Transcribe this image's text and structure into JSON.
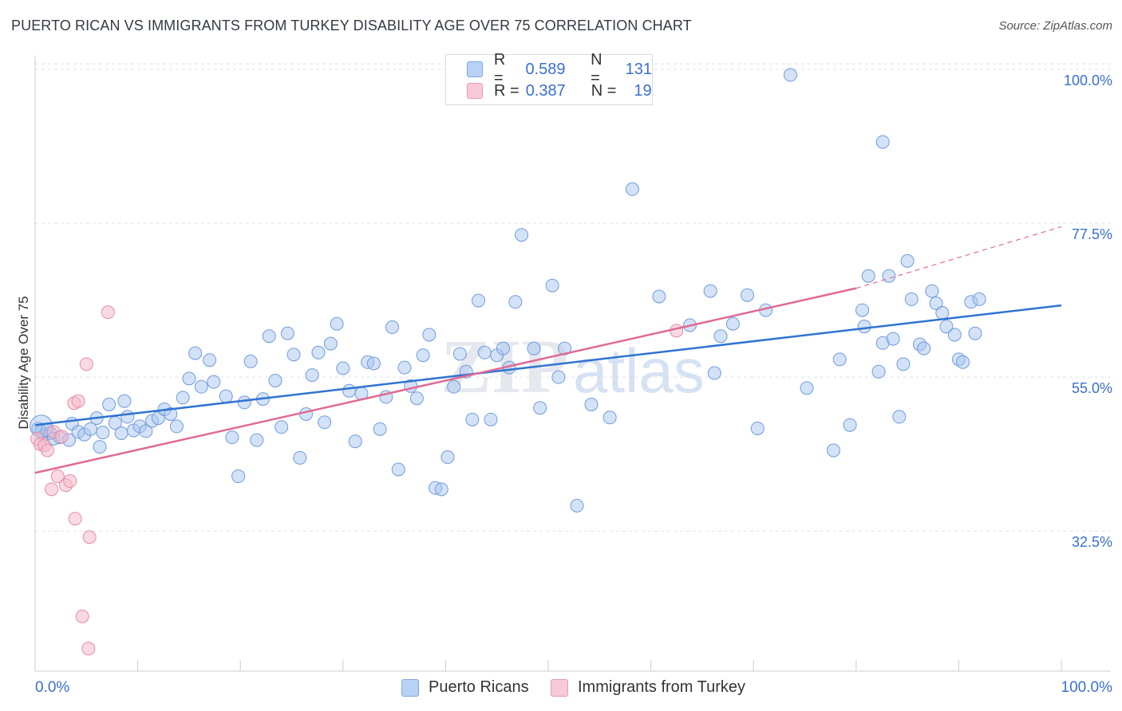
{
  "title": "PUERTO RICAN VS IMMIGRANTS FROM TURKEY DISABILITY AGE OVER 75 CORRELATION CHART",
  "source": "Source: ZipAtlas.com",
  "watermark_zip": "ZIP",
  "watermark_atlas": "atlas",
  "legend": {
    "r_label": "R =",
    "n_label": "N =",
    "series1_r": "0.589",
    "series1_n": "131",
    "series2_r": "0.387",
    "series2_n": "19"
  },
  "colors": {
    "blue_fill": "#a9c6f0",
    "blue_stroke": "#6f9bdc",
    "blue_line": "#2f73d1",
    "pink_fill": "#f5bccb",
    "pink_stroke": "#e58aa6",
    "pink_line": "#e06a93",
    "tick_text": "#3a6fd0"
  },
  "chart_data": {
    "type": "scatter",
    "xlabel_left": "0.0%",
    "xlabel_right": "100.0%",
    "ylabel": "Disability Age Over 75",
    "x_range": [
      0,
      100
    ],
    "y_range": [
      12,
      102
    ],
    "y_ticks": [
      {
        "value": 100.0,
        "label": "100.0%"
      },
      {
        "value": 77.5,
        "label": "77.5%"
      },
      {
        "value": 55.0,
        "label": "55.0%"
      },
      {
        "value": 32.5,
        "label": "32.5%"
      }
    ],
    "series": [
      {
        "name": "Puerto Ricans",
        "trend": {
          "x1": 0,
          "y1": 48.0,
          "x2": 100,
          "y2": 65.5
        },
        "points": [
          [
            0.3,
            47.5
          ],
          [
            0.6,
            47.0
          ],
          [
            0.9,
            46.5
          ],
          [
            1.2,
            47.2
          ],
          [
            1.5,
            46.8
          ],
          [
            1.8,
            46.0
          ],
          [
            2.4,
            46.2
          ],
          [
            3.3,
            45.8
          ],
          [
            3.6,
            48.2
          ],
          [
            4.2,
            47.0
          ],
          [
            4.8,
            46.6
          ],
          [
            5.4,
            47.4
          ],
          [
            6.0,
            49.0
          ],
          [
            6.3,
            44.8
          ],
          [
            6.6,
            46.9
          ],
          [
            7.2,
            51.0
          ],
          [
            7.8,
            48.3
          ],
          [
            8.4,
            46.8
          ],
          [
            8.7,
            51.5
          ],
          [
            9.0,
            49.2
          ],
          [
            9.6,
            47.2
          ],
          [
            10.2,
            47.8
          ],
          [
            10.8,
            47.1
          ],
          [
            11.4,
            48.6
          ],
          [
            12.0,
            49.0
          ],
          [
            12.6,
            50.3
          ],
          [
            13.2,
            49.6
          ],
          [
            13.8,
            47.8
          ],
          [
            14.4,
            52.0
          ],
          [
            15.0,
            54.8
          ],
          [
            15.6,
            58.5
          ],
          [
            16.2,
            53.6
          ],
          [
            17.4,
            54.3
          ],
          [
            17.0,
            57.5
          ],
          [
            18.6,
            52.2
          ],
          [
            19.2,
            46.2
          ],
          [
            19.8,
            40.5
          ],
          [
            20.4,
            51.3
          ],
          [
            21.0,
            57.3
          ],
          [
            21.6,
            45.8
          ],
          [
            22.2,
            51.8
          ],
          [
            22.8,
            61.0
          ],
          [
            23.4,
            54.5
          ],
          [
            24.0,
            47.7
          ],
          [
            24.6,
            61.4
          ],
          [
            25.2,
            58.3
          ],
          [
            25.8,
            43.2
          ],
          [
            26.4,
            49.6
          ],
          [
            27.0,
            55.3
          ],
          [
            27.6,
            58.6
          ],
          [
            28.2,
            48.4
          ],
          [
            28.8,
            59.9
          ],
          [
            29.4,
            62.8
          ],
          [
            30.0,
            56.3
          ],
          [
            30.6,
            53.0
          ],
          [
            31.2,
            45.6
          ],
          [
            31.8,
            52.6
          ],
          [
            32.4,
            57.2
          ],
          [
            33.0,
            57.0
          ],
          [
            33.6,
            47.4
          ],
          [
            34.2,
            52.1
          ],
          [
            34.8,
            62.3
          ],
          [
            35.4,
            41.5
          ],
          [
            36.0,
            56.4
          ],
          [
            36.6,
            53.7
          ],
          [
            37.2,
            51.9
          ],
          [
            37.8,
            58.2
          ],
          [
            38.4,
            61.2
          ],
          [
            39.0,
            38.8
          ],
          [
            39.6,
            38.6
          ],
          [
            40.2,
            43.3
          ],
          [
            40.8,
            53.6
          ],
          [
            41.4,
            58.4
          ],
          [
            42.0,
            55.8
          ],
          [
            42.6,
            48.8
          ],
          [
            43.2,
            66.2
          ],
          [
            43.8,
            58.6
          ],
          [
            44.4,
            48.8
          ],
          [
            45.0,
            58.2
          ],
          [
            45.6,
            59.2
          ],
          [
            46.2,
            56.4
          ],
          [
            46.8,
            66.0
          ],
          [
            47.4,
            75.8
          ],
          [
            48.6,
            59.2
          ],
          [
            49.2,
            50.5
          ],
          [
            50.4,
            68.4
          ],
          [
            51.0,
            55.0
          ],
          [
            51.6,
            59.2
          ],
          [
            52.8,
            36.2
          ],
          [
            54.2,
            51.0
          ],
          [
            56.0,
            49.1
          ],
          [
            58.2,
            82.5
          ],
          [
            60.8,
            66.8
          ],
          [
            63.8,
            62.6
          ],
          [
            65.8,
            67.6
          ],
          [
            66.2,
            55.6
          ],
          [
            66.8,
            61.0
          ],
          [
            68.0,
            62.8
          ],
          [
            69.4,
            67.0
          ],
          [
            70.4,
            47.5
          ],
          [
            71.2,
            64.8
          ],
          [
            75.2,
            53.4
          ],
          [
            77.8,
            44.3
          ],
          [
            78.4,
            57.6
          ],
          [
            79.4,
            48.0
          ],
          [
            80.6,
            64.8
          ],
          [
            80.8,
            62.4
          ],
          [
            81.2,
            69.8
          ],
          [
            82.2,
            55.8
          ],
          [
            82.6,
            60.0
          ],
          [
            83.2,
            69.8
          ],
          [
            83.6,
            60.6
          ],
          [
            84.2,
            49.2
          ],
          [
            84.6,
            56.9
          ],
          [
            85.0,
            72.0
          ],
          [
            85.4,
            66.4
          ],
          [
            86.2,
            59.8
          ],
          [
            86.6,
            59.2
          ],
          [
            87.4,
            67.6
          ],
          [
            87.8,
            65.8
          ],
          [
            88.4,
            64.4
          ],
          [
            88.8,
            62.4
          ],
          [
            89.6,
            61.2
          ],
          [
            90.0,
            57.6
          ],
          [
            90.4,
            57.2
          ],
          [
            91.2,
            66.0
          ],
          [
            91.6,
            61.4
          ],
          [
            92.0,
            66.4
          ],
          [
            82.6,
            89.4
          ],
          [
            73.6,
            99.2
          ]
        ]
      },
      {
        "name": "Immigrants from Turkey",
        "trend": {
          "x1": 0,
          "y1": 41.0,
          "x2": 80,
          "y2": 68.0,
          "dash_to_x": 100,
          "dash_to_y": 77.0
        },
        "points": [
          [
            0.2,
            46.0
          ],
          [
            0.5,
            45.2
          ],
          [
            0.9,
            45.0
          ],
          [
            1.2,
            44.3
          ],
          [
            1.8,
            47.0
          ],
          [
            2.2,
            40.5
          ],
          [
            2.6,
            46.3
          ],
          [
            3.0,
            39.2
          ],
          [
            3.4,
            39.8
          ],
          [
            1.6,
            38.6
          ],
          [
            3.8,
            51.2
          ],
          [
            4.2,
            51.5
          ],
          [
            3.9,
            34.3
          ],
          [
            5.3,
            31.6
          ],
          [
            5.0,
            56.9
          ],
          [
            7.1,
            64.5
          ],
          [
            4.6,
            20.0
          ],
          [
            5.2,
            15.3
          ],
          [
            62.5,
            61.8
          ]
        ]
      }
    ]
  }
}
